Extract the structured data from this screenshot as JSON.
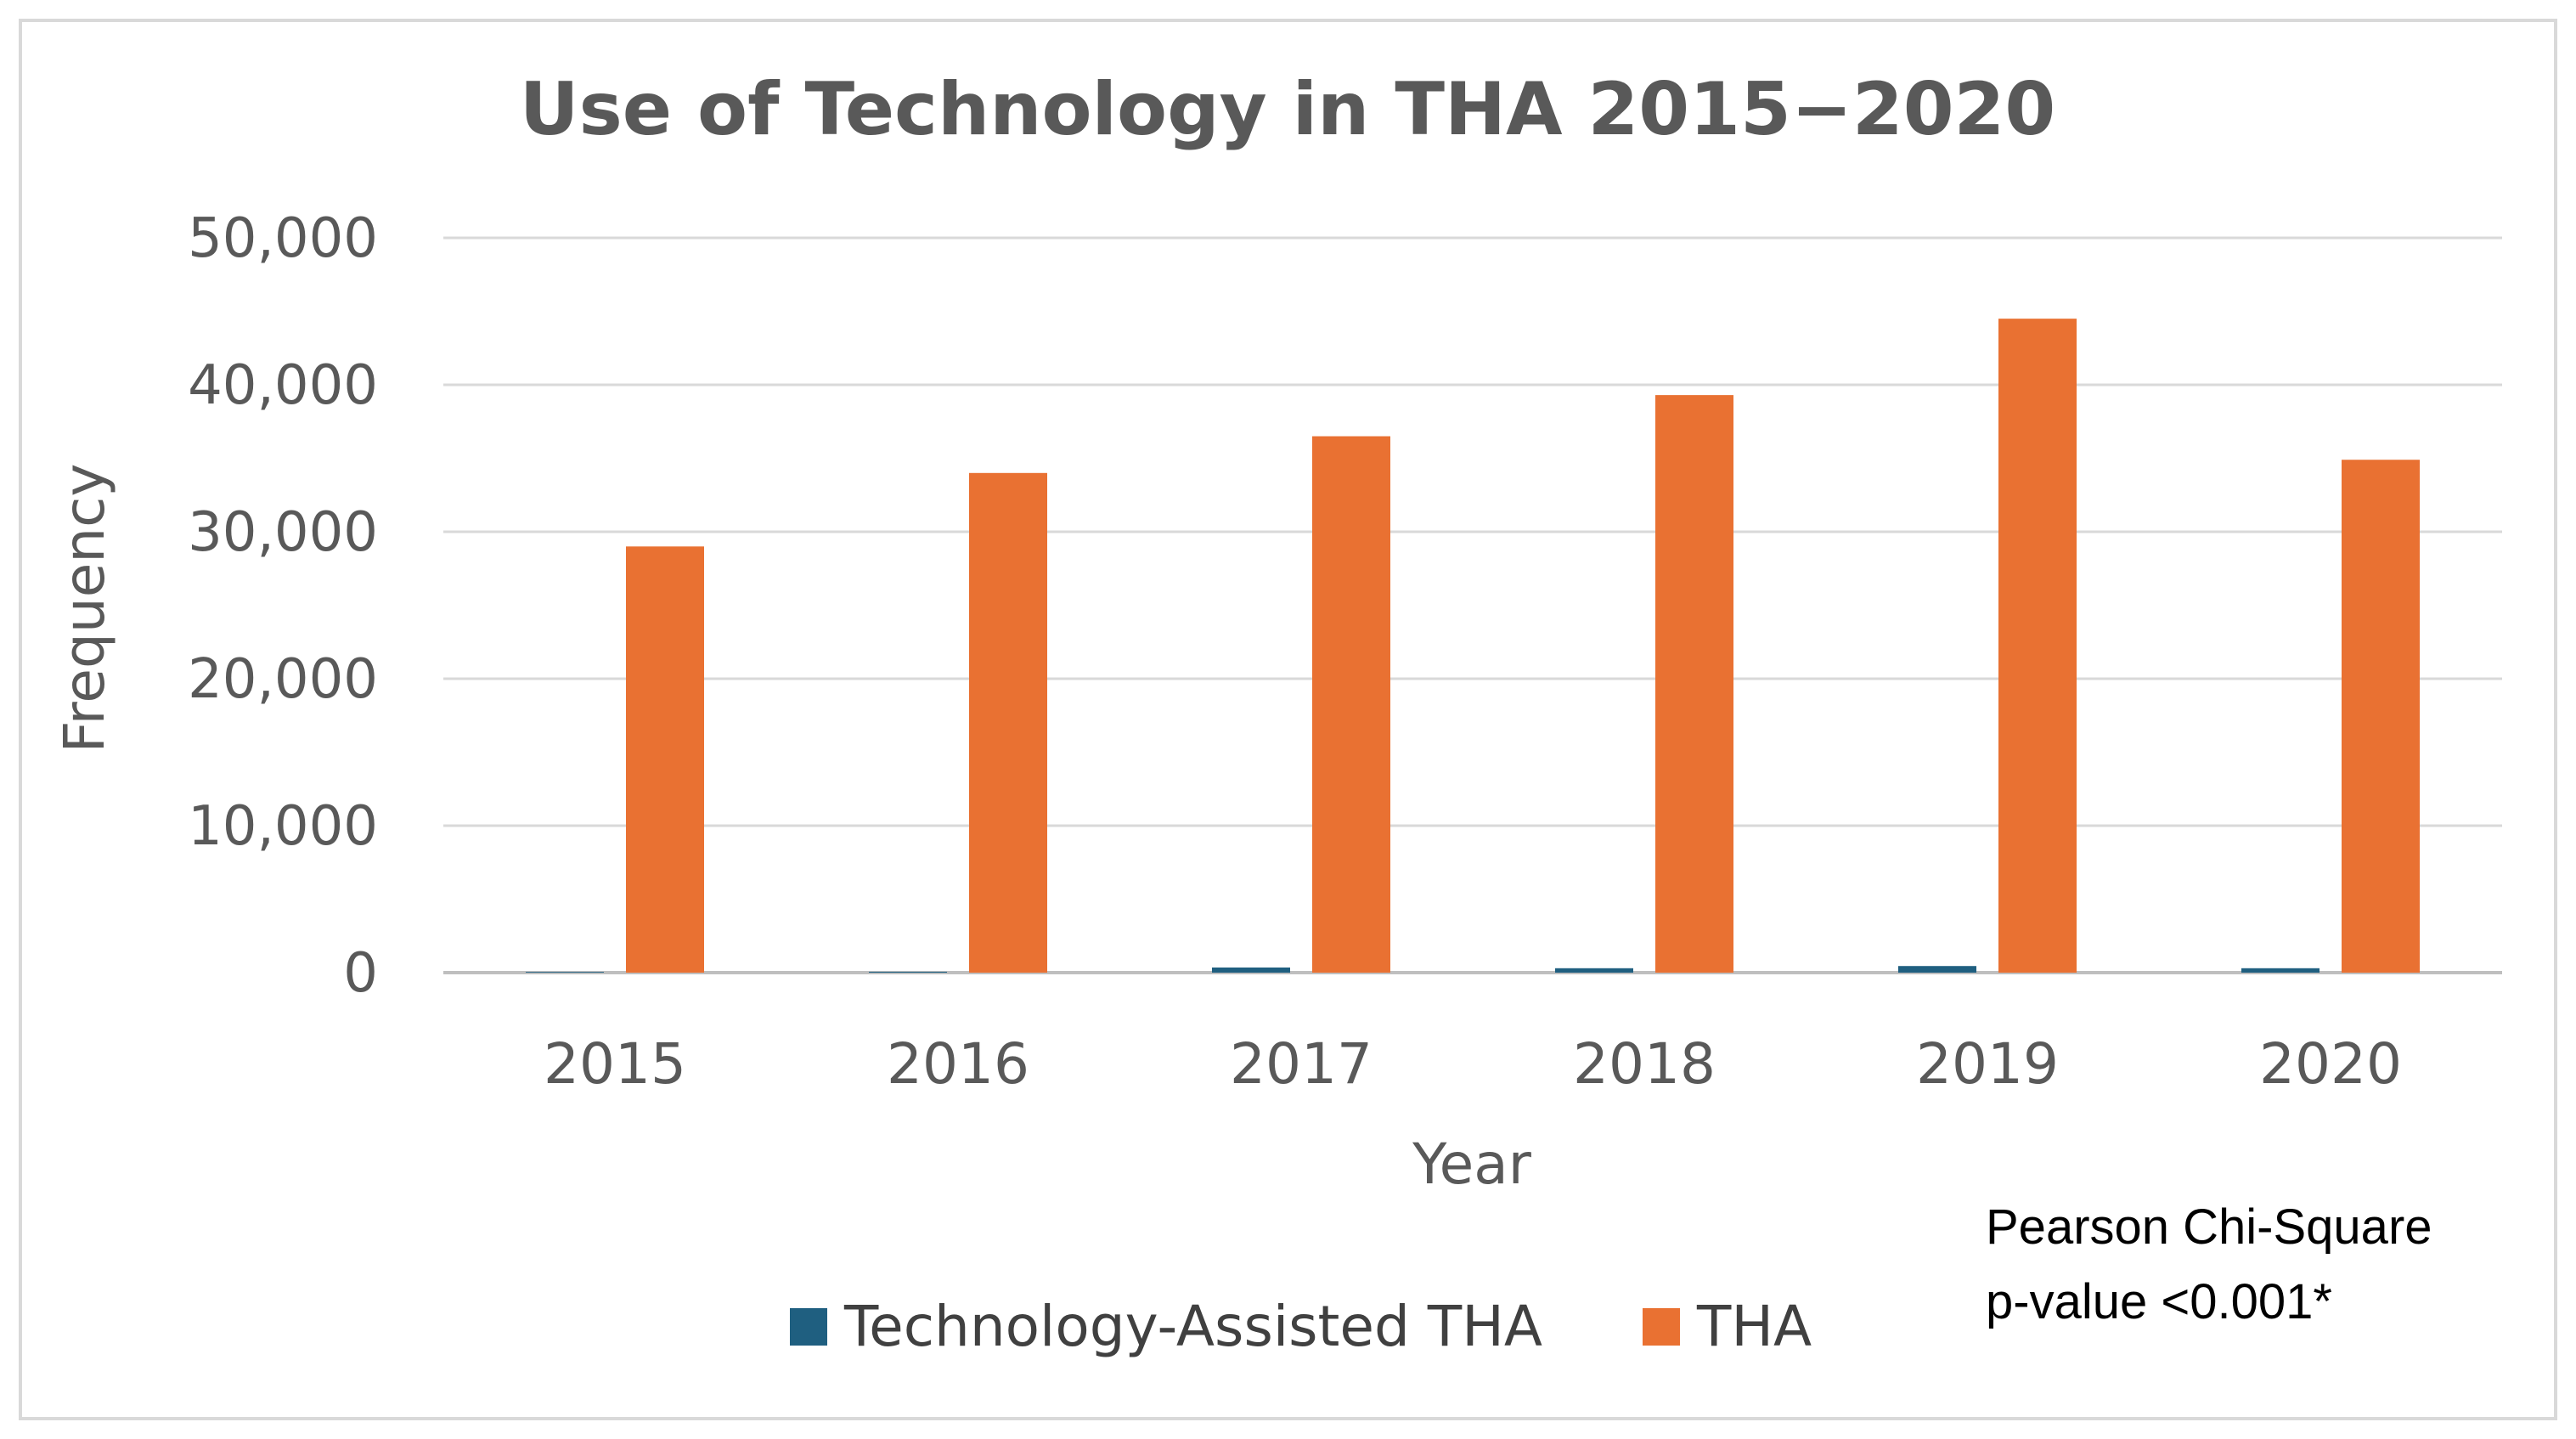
{
  "chart_data": {
    "type": "bar",
    "title": "Use of Technology in THA 2015−2020",
    "xlabel": "Year",
    "ylabel": "Frequency",
    "categories": [
      "2015",
      "2016",
      "2017",
      "2018",
      "2019",
      "2020"
    ],
    "series": [
      {
        "name": "Technology-Assisted THA",
        "color": "#1f5f80",
        "values": [
          50,
          60,
          350,
          300,
          450,
          300
        ]
      },
      {
        "name": "THA",
        "color": "#e97132",
        "values": [
          29000,
          34000,
          36500,
          39300,
          44500,
          34900
        ]
      }
    ],
    "ylim": [
      0,
      50000
    ],
    "yticks": [
      0,
      10000,
      20000,
      30000,
      40000,
      50000
    ],
    "ytick_labels": [
      "0",
      "10,000",
      "20,000",
      "30,000",
      "40,000",
      "50,000"
    ],
    "grid": true,
    "legend_position": "bottom",
    "annotation": {
      "line1": "Pearson Chi-Square",
      "line2": "p-value <0.001*"
    }
  }
}
